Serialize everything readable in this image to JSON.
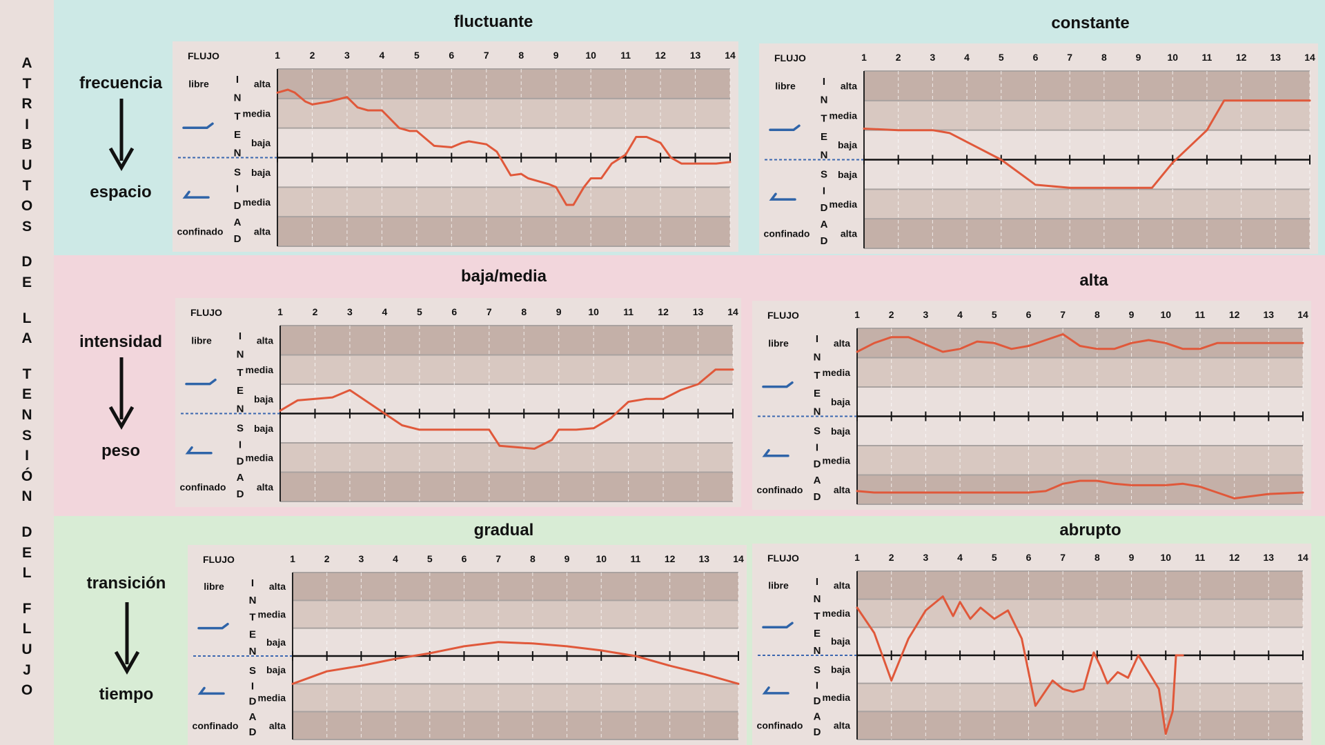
{
  "sidebar": {
    "letters": [
      "A",
      "T",
      "R",
      "I",
      "B",
      "U",
      "T",
      "O",
      "S",
      "D",
      "E",
      "L",
      "A",
      "T",
      "E",
      "N",
      "S",
      "I",
      "Ó",
      "N",
      "D",
      "E",
      "L",
      "F",
      "L",
      "U",
      "J",
      "O"
    ]
  },
  "rows": [
    {
      "top_label": "frecuencia",
      "bottom_label": "espacio"
    },
    {
      "top_label": "intensidad",
      "bottom_label": "peso"
    },
    {
      "top_label": "transición",
      "bottom_label": "tiempo"
    }
  ],
  "common_labels": {
    "flujo": "FLUJO",
    "libre": "libre",
    "confinado": "confinado",
    "alta": "alta",
    "media": "media",
    "baja": "baja",
    "intensidad_letters": [
      "I",
      "N",
      "T",
      "E",
      "N",
      "S",
      "I",
      "D",
      "A",
      "D"
    ]
  },
  "colors": {
    "band_frecuencia": "#cde9e6",
    "band_intensidad": "#f2d6dc",
    "band_transicion": "#d8ecd5",
    "chart_bg": "#eae0dd",
    "dark_stripe": "#c4b0a8",
    "light_stripe": "#d8c8c1",
    "line": "#e0583a",
    "icon": "#2f64a8"
  },
  "chart_data": [
    {
      "type": "line",
      "title": "fluctuante",
      "x": [
        1,
        1.3,
        1.5,
        1.8,
        2,
        2.5,
        3,
        3.3,
        3.6,
        4,
        4.5,
        4.8,
        5,
        5.5,
        6,
        6.3,
        6.5,
        7,
        7.3,
        7.7,
        8,
        8.2,
        8.5,
        8.8,
        9,
        9.3,
        9.5,
        9.8,
        10,
        10.3,
        10.6,
        11,
        11.3,
        11.6,
        12,
        12.3,
        12.6,
        13,
        13.3,
        13.6,
        14
      ],
      "y": [
        2.2,
        2.3,
        2.2,
        1.9,
        1.8,
        1.9,
        2.05,
        1.7,
        1.6,
        1.6,
        1.0,
        0.9,
        0.9,
        0.4,
        0.35,
        0.5,
        0.55,
        0.45,
        0.2,
        -0.6,
        -0.55,
        -0.7,
        -0.8,
        -0.9,
        -1.0,
        -1.6,
        -1.6,
        -1.0,
        -0.7,
        -0.7,
        -0.2,
        0.1,
        0.7,
        0.7,
        0.5,
        0.0,
        -0.2,
        -0.2,
        -0.2,
        -0.2,
        -0.15
      ],
      "xlabel": "FLUJO",
      "xlim": [
        1,
        14
      ],
      "ylim": [
        -3,
        3
      ]
    },
    {
      "type": "line",
      "title": "constante",
      "x": [
        1,
        2,
        3,
        3.5,
        4,
        5,
        6,
        7,
        8,
        9,
        9.4,
        10,
        11,
        11.5,
        12,
        13,
        14
      ],
      "y": [
        1.05,
        1.0,
        1.0,
        0.9,
        0.6,
        0.0,
        -0.85,
        -0.95,
        -0.95,
        -0.95,
        -0.95,
        -0.1,
        1.0,
        2.0,
        2.0,
        2.0,
        2.0
      ],
      "xlabel": "FLUJO",
      "xlim": [
        1,
        14
      ],
      "ylim": [
        -3,
        3
      ]
    },
    {
      "type": "line",
      "title": "baja/media",
      "x": [
        1,
        1.5,
        2,
        2.5,
        3,
        3.5,
        4,
        4.5,
        5,
        6,
        7,
        7.3,
        7.8,
        8.3,
        8.8,
        9,
        9.5,
        10,
        10.5,
        11,
        11.5,
        12,
        12.5,
        13,
        13.5,
        14
      ],
      "y": [
        0.1,
        0.45,
        0.5,
        0.55,
        0.8,
        0.4,
        0.0,
        -0.4,
        -0.55,
        -0.55,
        -0.55,
        -1.1,
        -1.15,
        -1.2,
        -0.9,
        -0.55,
        -0.55,
        -0.5,
        -0.15,
        0.4,
        0.5,
        0.5,
        0.8,
        1.0,
        1.5,
        1.5
      ],
      "xlabel": "FLUJO",
      "xlim": [
        1,
        14
      ],
      "ylim": [
        -3,
        3
      ]
    },
    {
      "type": "line",
      "title": "alta",
      "x": [
        1,
        1.5,
        2,
        2.5,
        3,
        3.5,
        4,
        4.5,
        5,
        5.5,
        6,
        6.5,
        7,
        7.5,
        8,
        8.5,
        9,
        9.5,
        10,
        10.5,
        11,
        11.5,
        12,
        13,
        14
      ],
      "y": [
        2.2,
        2.5,
        2.7,
        2.7,
        2.45,
        2.2,
        2.3,
        2.55,
        2.5,
        2.3,
        2.4,
        2.6,
        2.8,
        2.4,
        2.3,
        2.3,
        2.5,
        2.6,
        2.5,
        2.3,
        2.3,
        2.5,
        2.5,
        2.5,
        2.5
      ],
      "y2": [
        -2.55,
        -2.6,
        -2.6,
        -2.6,
        -2.6,
        -2.6,
        -2.6,
        -2.6,
        -2.6,
        -2.6,
        -2.6,
        -2.55,
        -2.3,
        -2.2,
        -2.2,
        -2.3,
        -2.35,
        -2.35,
        -2.35,
        -2.3,
        -2.4,
        -2.6,
        -2.8,
        -2.65,
        -2.6
      ],
      "xlabel": "FLUJO",
      "xlim": [
        1,
        14
      ],
      "ylim": [
        -3,
        3
      ]
    },
    {
      "type": "line",
      "title": "gradual",
      "x": [
        1,
        2,
        3,
        4,
        5,
        6,
        7,
        8,
        9,
        10,
        11,
        12,
        13,
        14
      ],
      "y": [
        -1.0,
        -0.55,
        -0.35,
        -0.1,
        0.1,
        0.35,
        0.5,
        0.45,
        0.35,
        0.2,
        0.0,
        -0.35,
        -0.65,
        -1.0
      ],
      "xlabel": "FLUJO",
      "xlim": [
        1,
        14
      ],
      "ylim": [
        -3,
        3
      ]
    },
    {
      "type": "line",
      "title": "abrupto",
      "x": [
        1,
        1.5,
        2,
        2.5,
        3,
        3.5,
        3.8,
        4,
        4.3,
        4.6,
        5,
        5.4,
        5.8,
        6.2,
        6.7,
        7,
        7.3,
        7.6,
        7.9,
        8.1,
        8.3,
        8.6,
        8.9,
        9.2,
        9.5,
        9.8,
        10,
        10.2,
        10.3,
        10.5
      ],
      "y": [
        1.7,
        0.8,
        -0.9,
        0.6,
        1.6,
        2.1,
        1.4,
        1.9,
        1.3,
        1.7,
        1.3,
        1.6,
        0.6,
        -1.8,
        -0.9,
        -1.2,
        -1.3,
        -1.2,
        0.1,
        -0.4,
        -1.0,
        -0.6,
        -0.8,
        0.0,
        -0.6,
        -1.2,
        -2.8,
        -2.0,
        0.0,
        0.0
      ],
      "xlabel": "FLUJO",
      "xlim": [
        1,
        14
      ],
      "ylim": [
        -3,
        3
      ]
    }
  ]
}
